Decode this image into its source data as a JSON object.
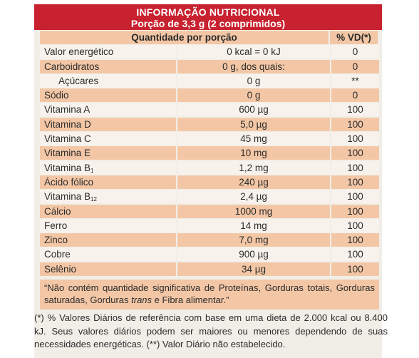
{
  "header": {
    "title": "INFORMAÇÃO NUTRICIONAL",
    "portion": "Porção de 3,3 g (2 comprimidos)"
  },
  "table": {
    "col_qty": "Quantidade por porção",
    "col_vd": "% VD(*)",
    "rows": [
      {
        "name": "Valor energético",
        "qty": "0 kcal = 0 kJ",
        "vd": "0"
      },
      {
        "name": "Carboidratos",
        "qty": "0 g, dos quais:",
        "vd": "0"
      },
      {
        "name": "Açúcares",
        "qty": "0 g",
        "vd": "**"
      },
      {
        "name": "Sódio",
        "qty": "0 g",
        "vd": "0"
      },
      {
        "name": "Vitamina A",
        "qty": "600 µg",
        "vd": "100"
      },
      {
        "name": "Vitamina D",
        "qty": "5,0 µg",
        "vd": "100"
      },
      {
        "name": "Vitamina C",
        "qty": "45 mg",
        "vd": "100"
      },
      {
        "name": "Vitamina E",
        "qty": "10 mg",
        "vd": "100"
      },
      {
        "name": "Vitamina B",
        "sub": "1",
        "qty": "1,2 mg",
        "vd": "100"
      },
      {
        "name": "Ácido fólico",
        "qty": "240 µg",
        "vd": "100"
      },
      {
        "name": "Vitamina B",
        "sub": "12",
        "qty": "2,4 µg",
        "vd": "100"
      },
      {
        "name": "Cálcio",
        "qty": "1000 mg",
        "vd": "100"
      },
      {
        "name": "Ferro",
        "qty": "14 mg",
        "vd": "100"
      },
      {
        "name": "Zinco",
        "qty": "7,0 mg",
        "vd": "100"
      },
      {
        "name": "Cobre",
        "qty": "900 µg",
        "vd": "100"
      },
      {
        "name": "Selênio",
        "qty": "34 µg",
        "vd": "100"
      }
    ]
  },
  "note": {
    "before": "“Não contém quantidade significativa de Proteínas, Gorduras totais, Gorduras saturadas, Gorduras ",
    "italic": "trans",
    "after": " e Fibra alimentar.”"
  },
  "footnote": "(*) % Valores Diários de referência com base em uma dieta de 2.000 kcal ou 8.400 kJ. Seus valores diários podem ser maiores ou menores dependendo de suas necessidades energéticas. (**) Valor Diário não estabelecido.",
  "colors": {
    "header_red": "#c8212f",
    "row_dark": "#f3c7a6",
    "row_light": "#f7f3ec"
  }
}
